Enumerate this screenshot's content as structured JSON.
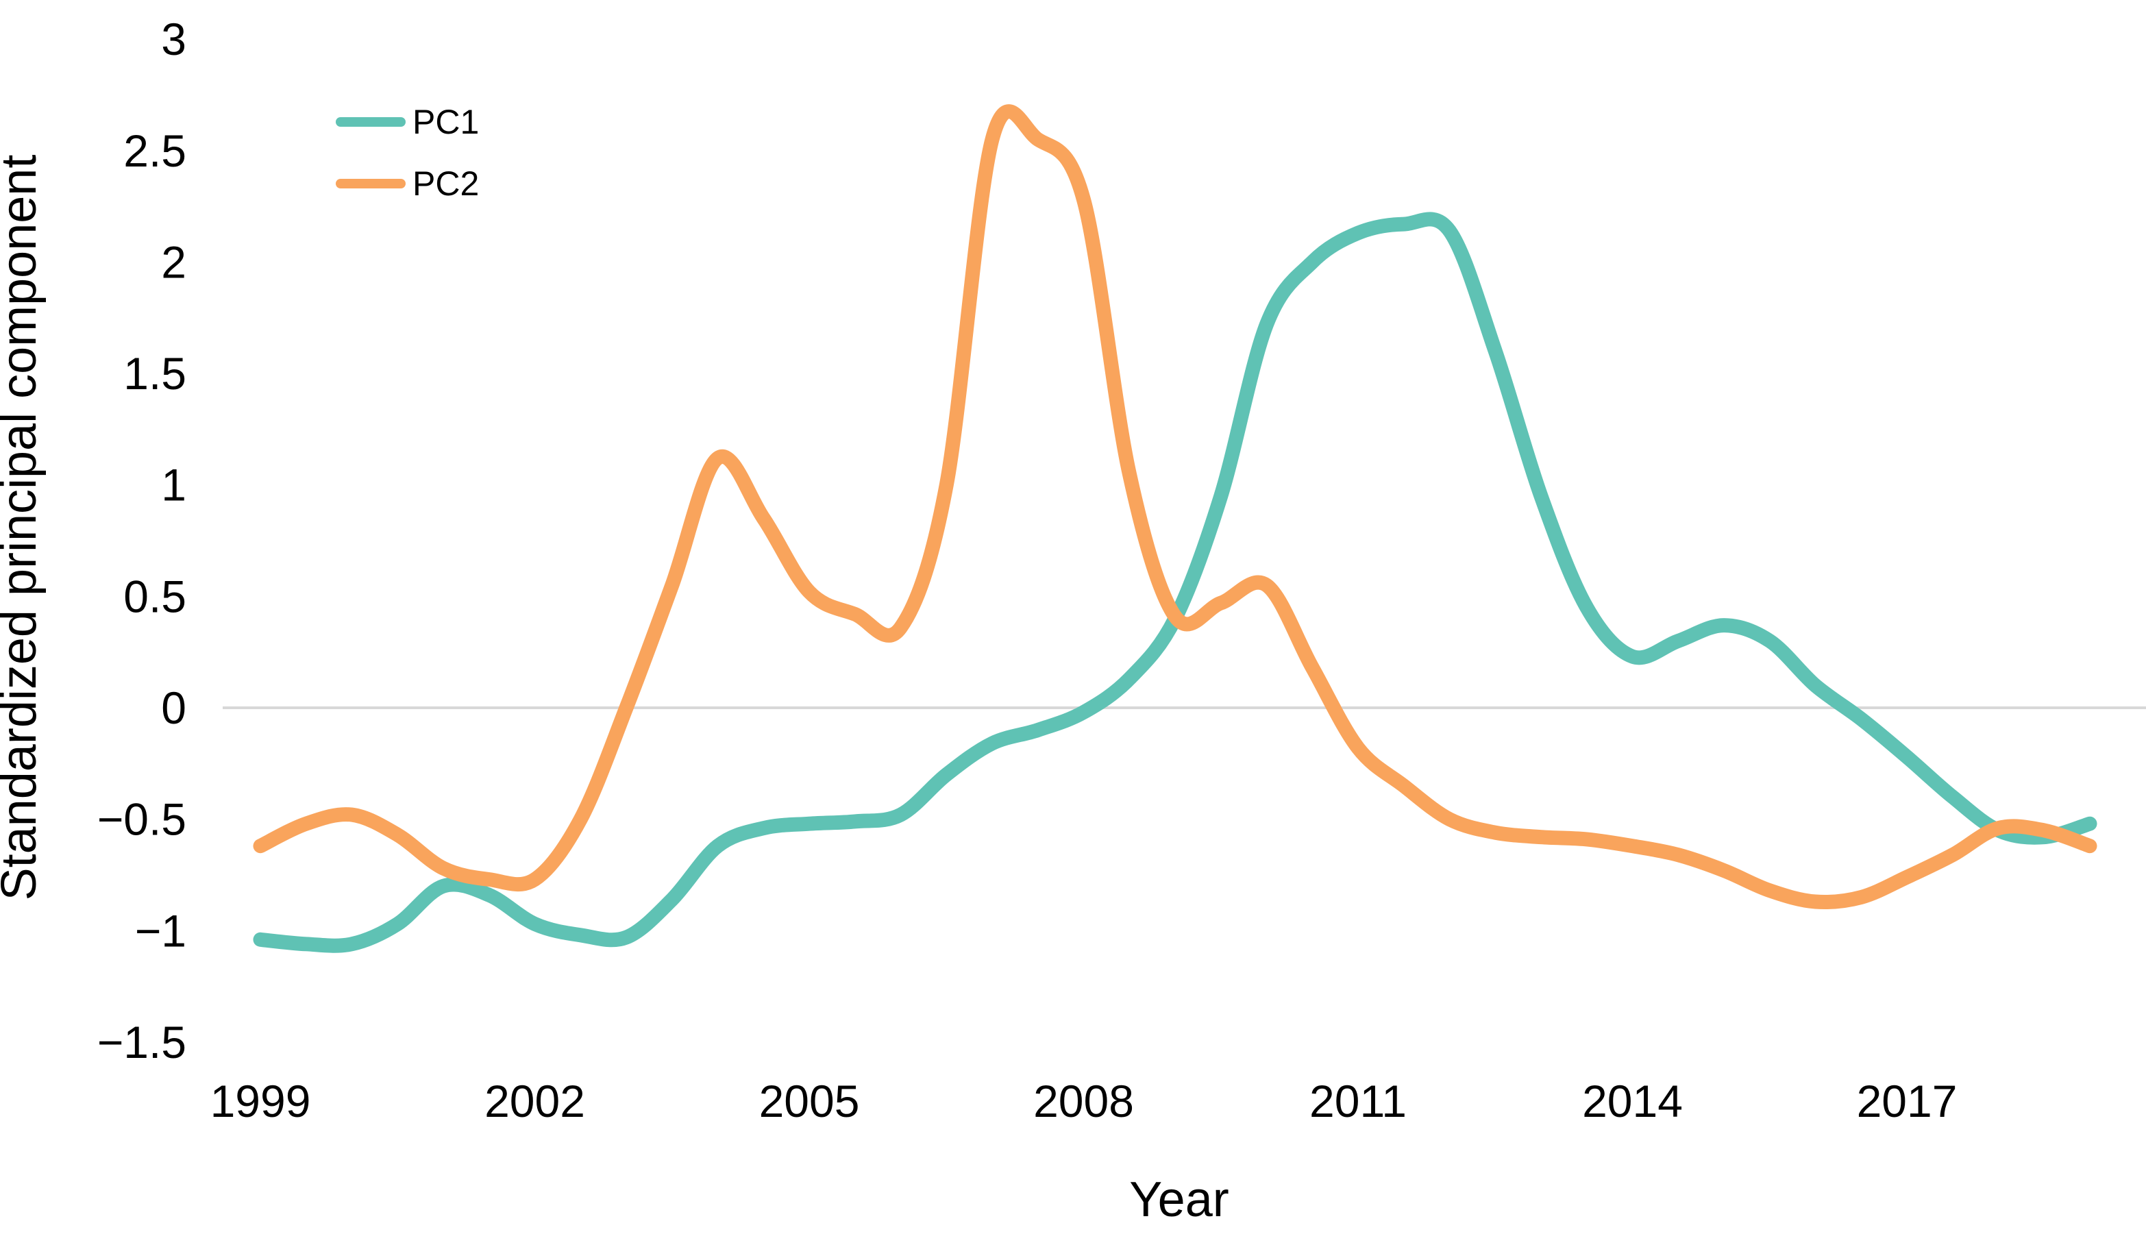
{
  "chart_data": {
    "type": "line",
    "title": "",
    "xlabel": "Year",
    "ylabel": "Standardized principal component",
    "x_tick_years": [
      1999,
      2002,
      2005,
      2008,
      2011,
      2014,
      2017
    ],
    "x_tick_labels": [
      "1999",
      "2002",
      "2005",
      "2008",
      "2011",
      "2014",
      "2017"
    ],
    "y_tick_values": [
      3,
      2.5,
      2,
      1.5,
      1,
      0.5,
      0,
      -0.5,
      -1,
      -1.5
    ],
    "y_tick_labels": [
      "3",
      "2.5",
      "2",
      "1.5",
      "1",
      "0.5",
      "0",
      "−0.5",
      "−1",
      "−1.5"
    ],
    "xlim": [
      1999,
      2019
    ],
    "ylim": [
      -1.5,
      3
    ],
    "grid": "horizontal line at y=0 only",
    "legend_position": "top-left",
    "x": [
      1999,
      1999.5,
      2000,
      2000.5,
      2001,
      2001.5,
      2002,
      2002.5,
      2003,
      2003.5,
      2004,
      2004.5,
      2005,
      2005.5,
      2006,
      2006.5,
      2007,
      2007.5,
      2008,
      2008.5,
      2009,
      2009.5,
      2010,
      2010.5,
      2011,
      2011.5,
      2012,
      2012.5,
      2013,
      2013.5,
      2014,
      2014.5,
      2015,
      2015.5,
      2016,
      2016.5,
      2017,
      2017.5,
      2018,
      2018.5,
      2019
    ],
    "series": [
      {
        "name": "PC1",
        "color": "#5FC2B4",
        "values": [
          -1.04,
          -1.06,
          -1.06,
          -0.97,
          -0.8,
          -0.84,
          -0.97,
          -1.02,
          -1.03,
          -0.86,
          -0.62,
          -0.54,
          -0.52,
          -0.51,
          -0.48,
          -0.3,
          -0.16,
          -0.1,
          -0.02,
          0.13,
          0.4,
          0.95,
          1.72,
          2.0,
          2.13,
          2.17,
          2.14,
          1.6,
          0.95,
          0.45,
          0.23,
          0.3,
          0.37,
          0.3,
          0.1,
          -0.05,
          -0.22,
          -0.4,
          -0.55,
          -0.58,
          -0.52
        ]
      },
      {
        "name": "PC2",
        "color": "#F9A45C",
        "values": [
          -0.62,
          -0.52,
          -0.48,
          -0.57,
          -0.72,
          -0.77,
          -0.77,
          -0.5,
          0.0,
          0.55,
          1.12,
          0.85,
          0.52,
          0.42,
          0.36,
          1.0,
          2.55,
          2.55,
          2.28,
          1.05,
          0.41,
          0.47,
          0.55,
          0.18,
          -0.18,
          -0.35,
          -0.5,
          -0.56,
          -0.58,
          -0.59,
          -0.62,
          -0.66,
          -0.73,
          -0.82,
          -0.87,
          -0.85,
          -0.76,
          -0.66,
          -0.54,
          -0.55,
          -0.62
        ]
      }
    ]
  },
  "colors": {
    "background": "#FFFFFF",
    "grid_line": "#D8D8D8",
    "text": "#000000",
    "pc1": "#5FC2B4",
    "pc2": "#F9A45C"
  }
}
